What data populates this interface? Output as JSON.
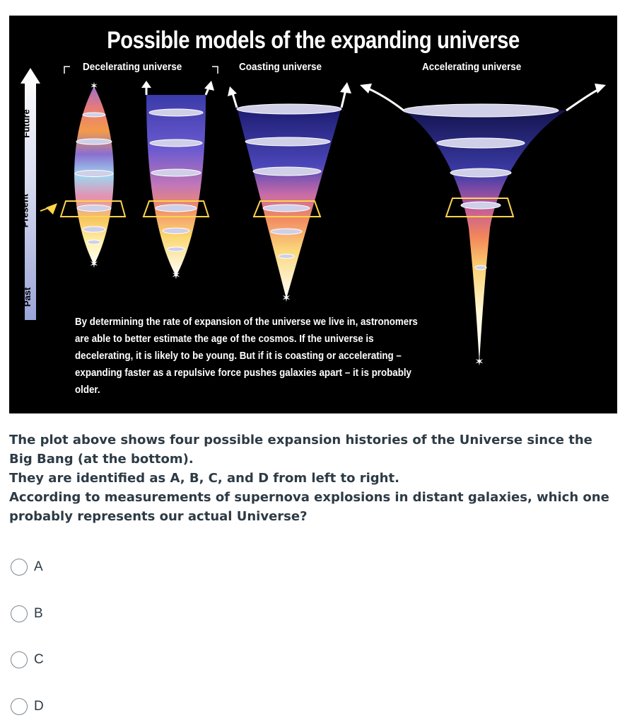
{
  "figure": {
    "title": "Possible models of the expanding universe",
    "labels": {
      "decelerating": "Decelerating universe",
      "coasting": "Coasting universe",
      "accelerating": "Accelerating universe"
    },
    "time_axis": {
      "future": "Future",
      "present": "Present",
      "past": "Past"
    },
    "caption": "By determining the rate of expansion of the universe we live in, astronomers are able to better estimate the age of the cosmos. If the universe is decelerating, it is likely to be young. But if it is coasting or accelerating – expanding faster as a repulsive force pushes galaxies apart – it is probably older."
  },
  "question": {
    "line1": "The plot above shows four possible expansion histories of the Universe since the Big Bang (at the bottom).",
    "line2": "They are identified as A, B, C, and D from left to right.",
    "line3": "According to measurements of supernova explosions in distant galaxies, which one probably represents our actual Universe?"
  },
  "options": [
    {
      "label": "A",
      "selected": false
    },
    {
      "label": "B",
      "selected": false
    },
    {
      "label": "C",
      "selected": false
    },
    {
      "label": "D",
      "selected": false
    }
  ],
  "colors": {
    "background": "#000000",
    "text": "#2d3b45",
    "radio_border": "#7b8690"
  }
}
